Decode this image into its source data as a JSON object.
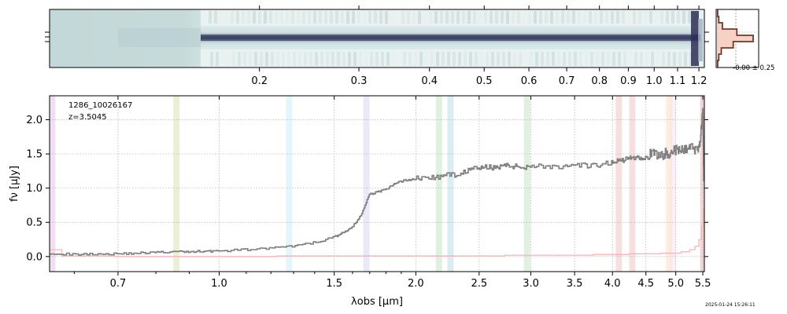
{
  "figure": {
    "object_id": "1286_10026167",
    "redshift_label": "z=3.5045",
    "timestamp": "2025-01-24 15:26:11"
  },
  "colors": {
    "spectrum": "#7f7f7f",
    "uncertainty": "#f4b6b6",
    "histogram_edge": "#6b3a2a",
    "histogram_fill": "#f7d2c4",
    "twod_dark": "#2b2f55",
    "twod_light": "#c8dcdc"
  },
  "chart_data": [
    {
      "type": "heatmap",
      "panel": "2d-spectrum",
      "top_axis_ticks": [
        "0.2",
        "0.3",
        "0.4",
        "0.5",
        "0.6",
        "0.7",
        "0.8",
        "0.9",
        "1.0",
        "1.1",
        "1.2"
      ],
      "top_axis_tick_values": [
        0.2,
        0.3,
        0.4,
        0.5,
        0.6,
        0.7,
        0.8,
        0.9,
        1.0,
        1.1,
        1.2
      ],
      "rest_wavelength_range": [
        0.085,
        1.227
      ]
    },
    {
      "type": "bar",
      "panel": "pixel-histogram",
      "annotation": "-0.00 ± 0.25",
      "bins": [
        -1.0,
        -0.75,
        -0.5,
        -0.25,
        0.0,
        0.25,
        0.5,
        0.75,
        1.0
      ],
      "counts": [
        0.02,
        0.05,
        0.12,
        0.45,
        1.0,
        0.55,
        0.15,
        0.05,
        0.02
      ]
    },
    {
      "type": "line",
      "panel": "1d-spectrum",
      "xlabel": "λobs [µm]",
      "ylabel": "fν [µJy]",
      "xscale": "log",
      "xlim": [
        0.55,
        5.53
      ],
      "ylim": [
        -0.22,
        2.35
      ],
      "x_ticks": [
        "0.7",
        "1.0",
        "1.5",
        "2.0",
        "2.5",
        "3.0",
        "3.5",
        "4.0",
        "4.5",
        "5.0",
        "5.5"
      ],
      "x_tick_values": [
        0.7,
        1.0,
        1.5,
        2.0,
        2.5,
        3.0,
        3.5,
        4.0,
        4.5,
        5.0,
        5.5
      ],
      "y_ticks": [
        "0.0",
        "0.5",
        "1.0",
        "1.5",
        "2.0"
      ],
      "y_tick_values": [
        0.0,
        0.5,
        1.0,
        1.5,
        2.0
      ],
      "grid": true,
      "line_bands": [
        {
          "center": 0.555,
          "color": "#e6c3e6"
        },
        {
          "center": 0.86,
          "color": "#d8e2b4"
        },
        {
          "center": 1.28,
          "color": "#cfeef6"
        },
        {
          "center": 1.68,
          "color": "#d9d9ee"
        },
        {
          "center": 2.17,
          "color": "#c4e6c4"
        },
        {
          "center": 2.26,
          "color": "#bfdcea"
        },
        {
          "center": 2.96,
          "color": "#c4e6c4"
        },
        {
          "center": 4.09,
          "color": "#f0c4c4"
        },
        {
          "center": 4.29,
          "color": "#f0c4c4"
        },
        {
          "center": 4.88,
          "color": "#fbe0c4"
        },
        {
          "center": 4.95,
          "color": "#f6e4f0"
        },
        {
          "center": 5.51,
          "color": "#e6b4b4"
        }
      ],
      "series": [
        {
          "x": [
            0.55,
            0.6,
            0.65,
            0.7,
            0.75,
            0.8,
            0.85,
            0.9,
            0.95,
            1.0,
            1.1,
            1.2,
            1.3,
            1.4,
            1.5,
            1.55,
            1.6,
            1.65,
            1.7,
            1.75,
            1.8,
            1.85,
            1.9,
            1.95,
            2.0,
            2.1,
            2.2,
            2.3,
            2.4,
            2.5,
            2.6,
            2.7,
            2.8,
            2.9,
            3.0,
            3.2,
            3.4,
            3.6,
            3.8,
            4.0,
            4.1,
            4.2,
            4.3,
            4.4,
            4.5,
            4.6,
            4.7,
            4.8,
            4.9,
            5.0,
            5.1,
            5.2,
            5.3,
            5.4,
            5.45,
            5.5,
            5.52
          ],
          "y": [
            0.05,
            0.03,
            0.04,
            0.04,
            0.05,
            0.06,
            0.07,
            0.07,
            0.08,
            0.08,
            0.1,
            0.12,
            0.15,
            0.2,
            0.28,
            0.35,
            0.42,
            0.6,
            0.9,
            0.95,
            0.97,
            1.05,
            1.1,
            1.12,
            1.14,
            1.15,
            1.17,
            1.2,
            1.25,
            1.3,
            1.3,
            1.32,
            1.33,
            1.3,
            1.33,
            1.32,
            1.3,
            1.33,
            1.32,
            1.38,
            1.4,
            1.42,
            1.45,
            1.45,
            1.45,
            1.5,
            1.48,
            1.5,
            1.52,
            1.55,
            1.55,
            1.58,
            1.6,
            1.55,
            1.7,
            2.1,
            1.1
          ]
        },
        {
          "x": [
            0.55,
            0.6,
            0.8,
            1.0,
            1.5,
            2.0,
            2.5,
            3.0,
            3.5,
            4.0,
            4.5,
            5.0,
            5.2,
            5.3,
            5.4,
            5.45,
            5.5,
            5.52
          ],
          "y": [
            0.1,
            0.01,
            0.0,
            0.0,
            0.01,
            0.01,
            0.01,
            0.02,
            0.02,
            0.03,
            0.04,
            0.05,
            0.07,
            0.1,
            0.15,
            0.25,
            0.45,
            0.7
          ]
        }
      ]
    }
  ]
}
